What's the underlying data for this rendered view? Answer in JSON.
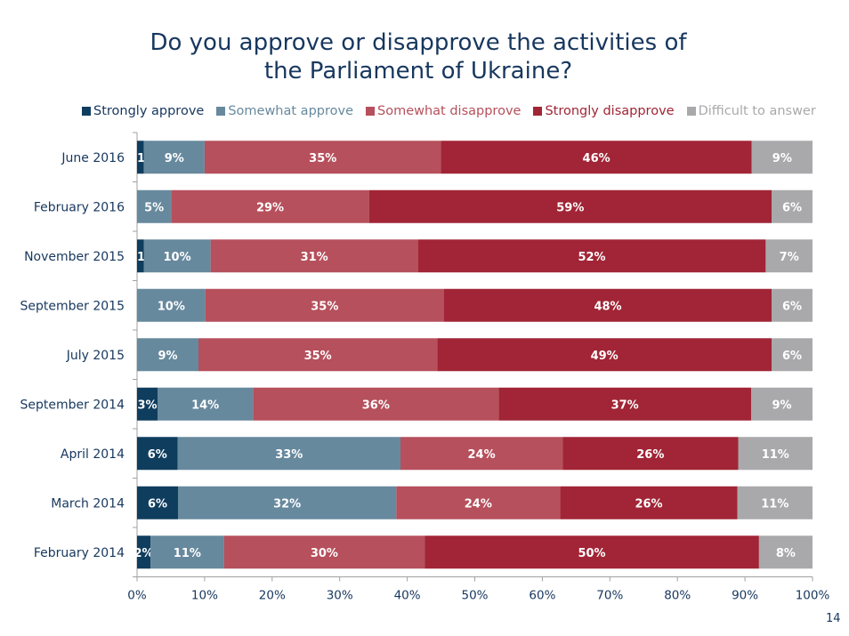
{
  "title_line1": "Do you approve or disapprove the activities of",
  "title_line2": "the Parliament of Ukraine?",
  "page_number": "14",
  "chart_data": {
    "type": "bar",
    "orientation": "horizontal",
    "stacked": true,
    "title": "Do you approve or disapprove the activities of the Parliament of Ukraine?",
    "xlim": [
      0,
      100
    ],
    "xticks": [
      "0%",
      "10%",
      "20%",
      "30%",
      "40%",
      "50%",
      "60%",
      "70%",
      "80%",
      "90%",
      "100%"
    ],
    "legend_position": "top",
    "categories": [
      "June 2016",
      "February 2016",
      "November 2015",
      "September 2015",
      "July 2015",
      "September 2014",
      "April 2014",
      "March 2014",
      "February 2014"
    ],
    "series": [
      {
        "name": "Strongly approve",
        "color": "#0f3d5e",
        "label_color": "#0f3d5e",
        "values": [
          1,
          0,
          1,
          0,
          0,
          3,
          6,
          6,
          2
        ]
      },
      {
        "name": "Somewhat approve",
        "color": "#67899e",
        "label_color": "#67899e",
        "values": [
          9,
          5,
          10,
          10,
          9,
          14,
          33,
          32,
          11
        ]
      },
      {
        "name": "Somewhat disapprove",
        "color": "#b6505c",
        "label_color": "#b6505c",
        "values": [
          35,
          29,
          31,
          35,
          35,
          36,
          24,
          24,
          30
        ]
      },
      {
        "name": "Strongly disapprove",
        "color": "#a12536",
        "label_color": "#a12536",
        "values": [
          46,
          59,
          52,
          48,
          49,
          37,
          26,
          26,
          50
        ]
      },
      {
        "name": "Difficult to answer",
        "color": "#a9a9ab",
        "label_color": "#a9a9ab",
        "values": [
          9,
          6,
          7,
          6,
          6,
          9,
          11,
          11,
          8
        ]
      }
    ]
  }
}
